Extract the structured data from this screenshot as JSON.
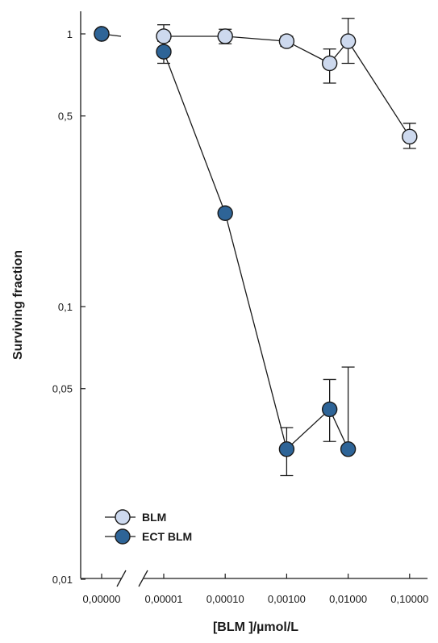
{
  "chart_data": {
    "type": "line",
    "xscale": "log (broken axis)",
    "yscale": "log",
    "xlabel": "[BLM ]/µmol/L",
    "ylabel": "Surviving fraction",
    "x_ticks": [
      "0,00000",
      "0,00001",
      "0,00010",
      "0,00100",
      "0,01000",
      "0,10000"
    ],
    "y_ticks": [
      "0,01",
      "0,05",
      "0,1",
      "0,5",
      "1"
    ],
    "ylim": [
      0.01,
      1.4
    ],
    "legend_position": "bottom-left",
    "series": [
      {
        "name": "BLM",
        "color": "#cdd9ee",
        "x": [
          0,
          1e-05,
          0.0001,
          0.001,
          0.005,
          0.01,
          0.1
        ],
        "y": [
          1.0,
          0.98,
          0.98,
          0.94,
          0.78,
          0.94,
          0.42
        ],
        "err_low": [
          0,
          0.1,
          0.06,
          0.04,
          0.12,
          0.16,
          0.04
        ],
        "err_high": [
          0,
          0.1,
          0.06,
          0.04,
          0.1,
          0.2,
          0.05
        ]
      },
      {
        "name": "ECT BLM",
        "color": "#2e6497",
        "x": [
          0,
          1e-05,
          0.0001,
          0.001,
          0.005,
          0.01
        ],
        "y": [
          1.0,
          0.86,
          0.22,
          0.03,
          0.042,
          0.03
        ],
        "err_low": [
          0,
          0.08,
          0.0,
          0.006,
          0.01,
          0.0
        ],
        "err_high": [
          0,
          0.08,
          0.0,
          0.006,
          0.012,
          0.03
        ]
      }
    ]
  }
}
